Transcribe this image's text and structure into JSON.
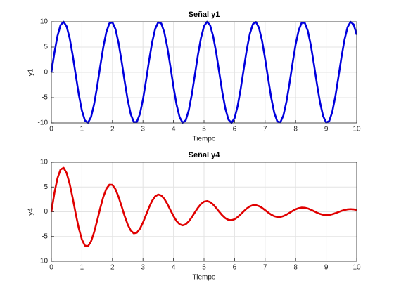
{
  "chart_data": [
    {
      "type": "line",
      "title": "Señal y1",
      "x_label": "Tiempo",
      "y_label": "y1",
      "grid": true,
      "xlim": [
        0,
        10
      ],
      "ylim": [
        -10,
        10
      ],
      "xticks": [
        0,
        1,
        2,
        3,
        4,
        5,
        6,
        7,
        8,
        9,
        10
      ],
      "yticks": [
        -10,
        -5,
        0,
        5,
        10
      ],
      "x": [
        0,
        0.1,
        0.2,
        0.3,
        0.4,
        0.5,
        0.6,
        0.7,
        0.8,
        0.9,
        1,
        1.1,
        1.2,
        1.3,
        1.4,
        1.5,
        1.6,
        1.7,
        1.8,
        1.9,
        2,
        2.1,
        2.2,
        2.3,
        2.4,
        2.5,
        2.6,
        2.7,
        2.8,
        2.9,
        3,
        3.1,
        3.2,
        3.3,
        3.4,
        3.5,
        3.6,
        3.7,
        3.8,
        3.9,
        4,
        4.1,
        4.2,
        4.3,
        4.4,
        4.5,
        4.6,
        4.7,
        4.8,
        4.9,
        5,
        5.1,
        5.2,
        5.3,
        5.4,
        5.5,
        5.6,
        5.7,
        5.8,
        5.9,
        6,
        6.1,
        6.2,
        6.3,
        6.4,
        6.5,
        6.6,
        6.7,
        6.8,
        6.9,
        7,
        7.1,
        7.2,
        7.3,
        7.4,
        7.5,
        7.6,
        7.7,
        7.8,
        7.9,
        8,
        8.1,
        8.2,
        8.3,
        8.4,
        8.5,
        8.6,
        8.7,
        8.8,
        8.9,
        9,
        9.1,
        9.2,
        9.3,
        9.4,
        9.5,
        9.6,
        9.7,
        9.8,
        9.9,
        10
      ],
      "series": [
        {
          "color": "#0000dd",
          "values": [
            0,
            3.89,
            7.17,
            9.32,
            10.0,
            9.09,
            6.76,
            3.35,
            -0.58,
            -4.43,
            -7.57,
            -9.52,
            -9.96,
            -8.84,
            -6.31,
            -2.79,
            1.17,
            4.94,
            7.94,
            9.68,
            9.89,
            8.55,
            5.85,
            2.23,
            -1.74,
            -5.44,
            -8.28,
            -9.81,
            -9.79,
            -8.23,
            -5.37,
            -1.66,
            2.32,
            5.92,
            8.59,
            9.91,
            9.66,
            7.88,
            4.86,
            1.08,
            -2.88,
            -6.38,
            -8.87,
            -9.97,
            -9.49,
            -7.51,
            -4.35,
            -0.5,
            3.43,
            6.82,
            9.13,
            10.0,
            9.29,
            7.11,
            3.82,
            -0.09,
            -3.97,
            -7.2,
            -9.35,
            -9.99,
            -9.06,
            -6.7,
            -3.27,
            0.67,
            4.51,
            7.63,
            9.54,
            9.95,
            8.8,
            6.25,
            2.71,
            -1.25,
            -5.02,
            -8.0,
            -9.71,
            -9.88,
            -8.51,
            -5.78,
            -2.14,
            1.83,
            5.51,
            8.33,
            9.83,
            9.77,
            8.18,
            5.29,
            1.57,
            -2.4,
            -5.98,
            -8.65,
            -9.92,
            -9.63,
            -7.82,
            -4.78,
            -0.99,
            2.96,
            6.45,
            8.92,
            9.98,
            9.46,
            7.45
          ]
        }
      ]
    },
    {
      "type": "line",
      "title": "Señal y4",
      "x_label": "Tiempo",
      "y_label": "y4",
      "grid": true,
      "xlim": [
        0,
        10
      ],
      "ylim": [
        -10,
        10
      ],
      "xticks": [
        0,
        1,
        2,
        3,
        4,
        5,
        6,
        7,
        8,
        9,
        10
      ],
      "yticks": [
        -10,
        -5,
        0,
        5,
        10
      ],
      "x": [
        0,
        0.1,
        0.2,
        0.3,
        0.4,
        0.5,
        0.6,
        0.7,
        0.8,
        0.9,
        1,
        1.1,
        1.2,
        1.3,
        1.4,
        1.5,
        1.6,
        1.7,
        1.8,
        1.9,
        2,
        2.1,
        2.2,
        2.3,
        2.4,
        2.5,
        2.6,
        2.7,
        2.8,
        2.9,
        3,
        3.1,
        3.2,
        3.3,
        3.4,
        3.5,
        3.6,
        3.7,
        3.8,
        3.9,
        4,
        4.1,
        4.2,
        4.3,
        4.4,
        4.5,
        4.6,
        4.7,
        4.8,
        4.9,
        5,
        5.1,
        5.2,
        5.3,
        5.4,
        5.5,
        5.6,
        5.7,
        5.8,
        5.9,
        6,
        6.1,
        6.2,
        6.3,
        6.4,
        6.5,
        6.6,
        6.7,
        6.8,
        6.9,
        7,
        7.1,
        7.2,
        7.3,
        7.4,
        7.5,
        7.6,
        7.7,
        7.8,
        7.9,
        8,
        8.1,
        8.2,
        8.3,
        8.4,
        8.5,
        8.6,
        8.7,
        8.8,
        8.9,
        9,
        9.1,
        9.2,
        9.3,
        9.4,
        9.5,
        9.6,
        9.7,
        9.8,
        9.9,
        10
      ],
      "series": [
        {
          "color": "#e00000",
          "values": [
            0,
            3.78,
            6.76,
            8.52,
            8.87,
            7.83,
            5.64,
            2.72,
            -0.46,
            -3.38,
            -5.61,
            -6.84,
            -6.95,
            -5.98,
            -4.15,
            -1.78,
            0.72,
            2.97,
            4.62,
            5.47,
            5.43,
            4.55,
            3.02,
            1.12,
            -0.85,
            -2.57,
            -3.79,
            -4.36,
            -4.23,
            -3.45,
            -2.18,
            -0.65,
            0.89,
            2.2,
            3.1,
            3.47,
            3.28,
            2.6,
            1.56,
            0.33,
            -0.87,
            -1.87,
            -2.52,
            -2.74,
            -2.53,
            -1.95,
            -1.09,
            -0.12,
            0.81,
            1.57,
            2.04,
            2.16,
            1.95,
            1.45,
            0.76,
            -0.02,
            -0.74,
            -1.3,
            -1.64,
            -1.7,
            -1.5,
            -1.07,
            -0.51,
            0.1,
            0.66,
            1.09,
            1.32,
            1.33,
            1.14,
            0.79,
            0.33,
            -0.15,
            -0.58,
            -0.89,
            -1.05,
            -1.04,
            -0.87,
            -0.57,
            -0.21,
            0.17,
            0.5,
            0.73,
            0.84,
            0.81,
            0.66,
            0.41,
            0.12,
            -0.18,
            -0.43,
            -0.6,
            -0.67,
            -0.63,
            -0.5,
            -0.29,
            -0.06,
            0.17,
            0.36,
            0.49,
            0.53,
            0.49,
            0.37
          ]
        }
      ]
    }
  ]
}
